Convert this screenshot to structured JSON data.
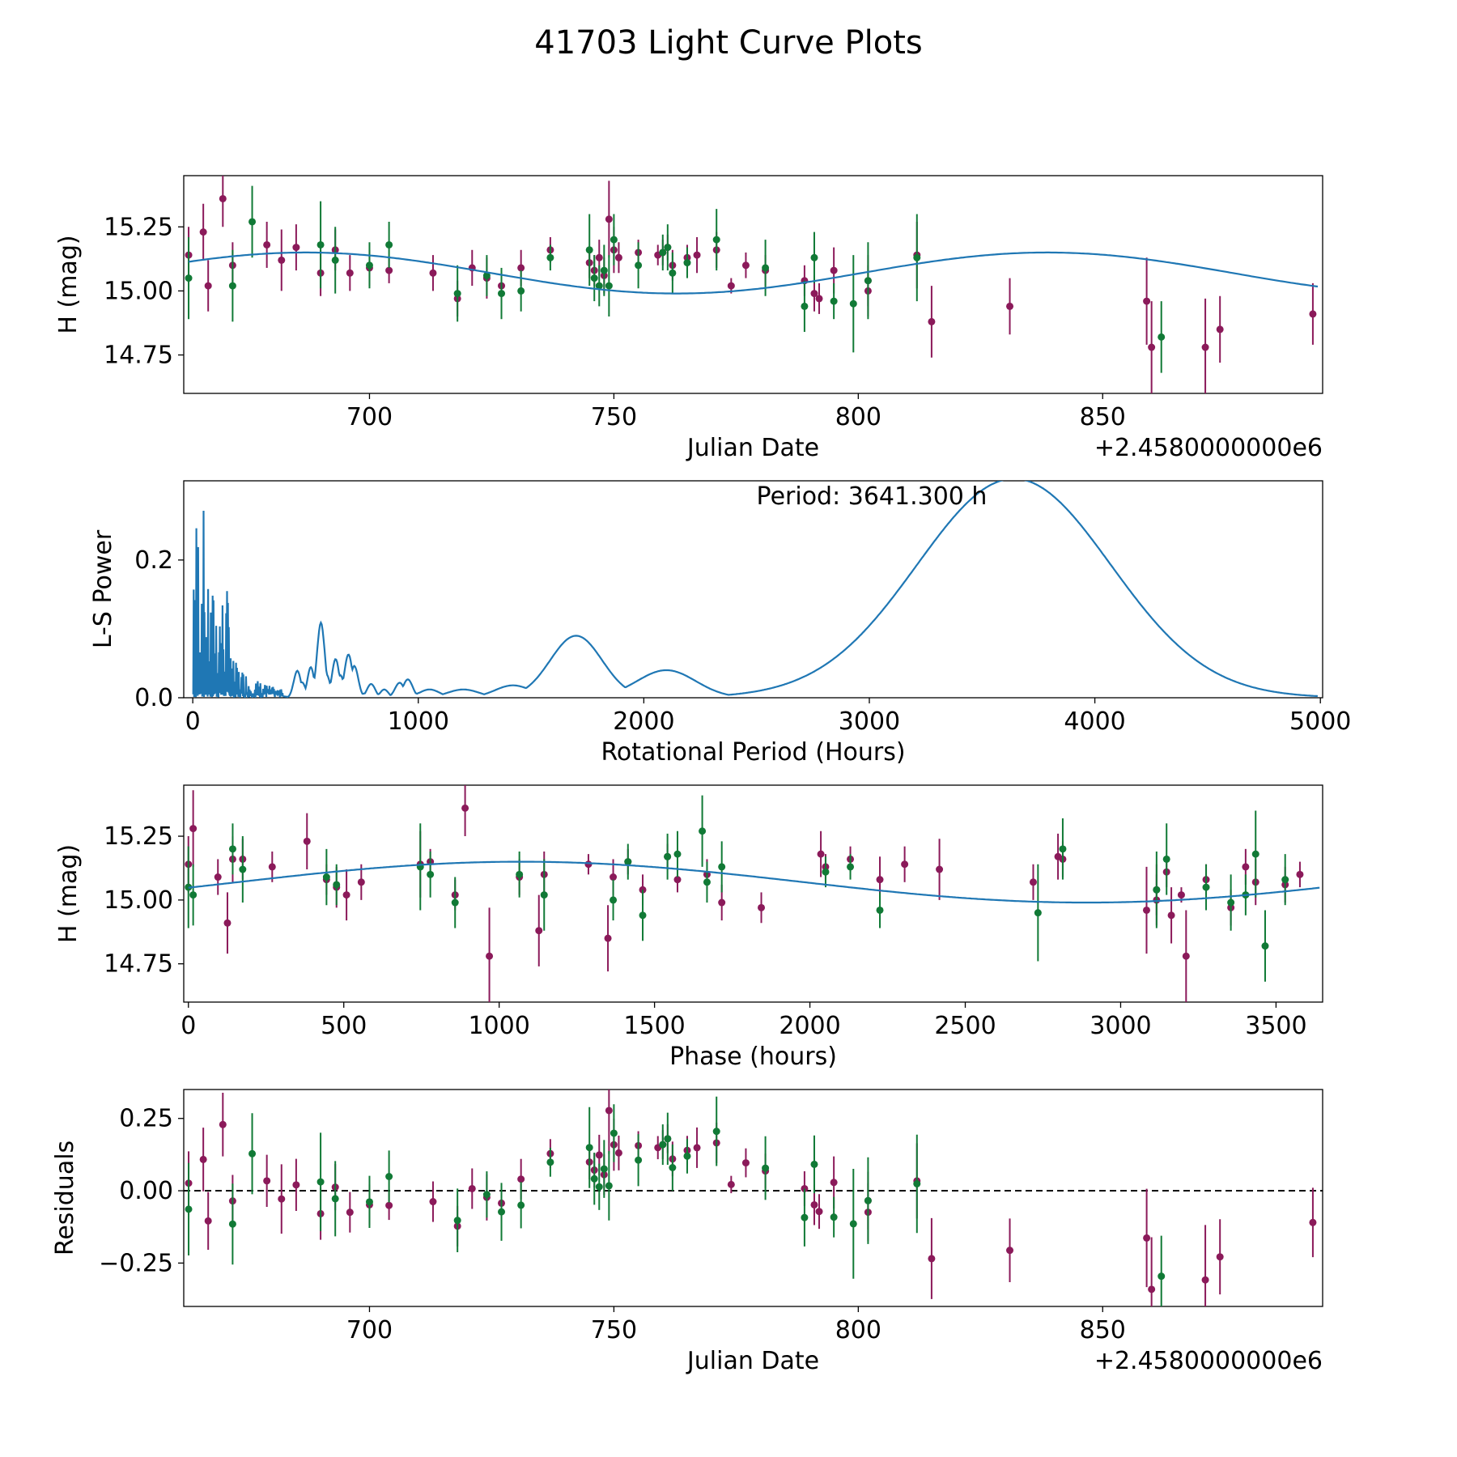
{
  "figure": {
    "title": "41703 Light Curve Plots"
  },
  "colors": {
    "series_a": "#8b1a5a",
    "series_b": "#117a36",
    "model": "#1f77b4"
  },
  "chart_data": [
    {
      "id": "lc",
      "type": "scatter",
      "xlabel": "Julian Date",
      "ylabel": "H (mag)",
      "offset_text": "+2.4580000000e6",
      "xlim": [
        662,
        895
      ],
      "ylim": [
        14.6,
        15.45
      ],
      "xticks": [
        700,
        750,
        800,
        850
      ],
      "xtick_labels": [
        "700",
        "750",
        "800",
        "850"
      ],
      "yticks": [
        14.75,
        15.0,
        15.25
      ],
      "ytick_labels": [
        "14.75",
        "15.00",
        "15.25"
      ],
      "model": {
        "mean": 15.07,
        "amplitude": 0.08,
        "period_days": 151.72,
        "epoch": 649,
        "x_range": [
          663,
          894
        ]
      },
      "series": [
        {
          "name": "red",
          "points": [
            [
              663,
              15.14,
              0.11
            ],
            [
              666,
              15.23,
              0.11
            ],
            [
              667,
              15.02,
              0.1
            ],
            [
              670,
              15.36,
              0.11
            ],
            [
              672,
              15.1,
              0.09
            ],
            [
              679,
              15.18,
              0.09
            ],
            [
              682,
              15.12,
              0.12
            ],
            [
              685,
              15.17,
              0.09
            ],
            [
              690,
              15.07,
              0.09
            ],
            [
              693,
              15.16,
              0.08
            ],
            [
              696,
              15.07,
              0.07
            ],
            [
              700,
              15.09,
              0.07
            ],
            [
              704,
              15.08,
              0.05
            ],
            [
              713,
              15.07,
              0.07
            ],
            [
              718,
              14.97,
              0.07
            ],
            [
              721,
              15.09,
              0.07
            ],
            [
              724,
              15.05,
              0.08
            ],
            [
              727,
              15.02,
              0.06
            ],
            [
              731,
              15.09,
              0.07
            ],
            [
              737,
              15.16,
              0.05
            ],
            [
              745,
              15.11,
              0.06
            ],
            [
              746,
              15.08,
              0.06
            ],
            [
              747,
              15.13,
              0.07
            ],
            [
              748,
              15.06,
              0.07
            ],
            [
              749,
              15.28,
              0.15
            ],
            [
              750,
              15.16,
              0.09
            ],
            [
              751,
              15.13,
              0.06
            ],
            [
              755,
              15.15,
              0.05
            ],
            [
              759,
              15.14,
              0.04
            ],
            [
              760,
              15.15,
              0.05
            ],
            [
              761,
              15.17,
              0.05
            ],
            [
              762,
              15.1,
              0.06
            ],
            [
              765,
              15.13,
              0.05
            ],
            [
              767,
              15.14,
              0.07
            ],
            [
              771,
              15.16,
              0.07
            ],
            [
              774,
              15.02,
              0.03
            ],
            [
              777,
              15.1,
              0.05
            ],
            [
              781,
              15.08,
              0.06
            ],
            [
              789,
              15.04,
              0.06
            ],
            [
              791,
              14.99,
              0.07
            ],
            [
              792,
              14.97,
              0.06
            ],
            [
              795,
              15.08,
              0.09
            ],
            [
              802,
              15.04,
              0.1
            ],
            [
              802,
              15.0,
              0.1
            ],
            [
              812,
              15.14,
              0.13
            ],
            [
              815,
              14.88,
              0.14
            ],
            [
              831,
              14.94,
              0.11
            ],
            [
              859,
              14.96,
              0.17
            ],
            [
              860,
              14.78,
              0.18
            ],
            [
              871,
              14.78,
              0.19
            ],
            [
              874,
              14.85,
              0.13
            ],
            [
              893,
              14.91,
              0.12
            ]
          ]
        },
        {
          "name": "green",
          "points": [
            [
              663,
              15.05,
              0.16
            ],
            [
              672,
              15.02,
              0.14
            ],
            [
              676,
              15.27,
              0.14
            ],
            [
              690,
              15.18,
              0.17
            ],
            [
              693,
              15.12,
              0.13
            ],
            [
              700,
              15.1,
              0.09
            ],
            [
              704,
              15.18,
              0.09
            ],
            [
              718,
              14.99,
              0.11
            ],
            [
              724,
              15.06,
              0.08
            ],
            [
              727,
              14.99,
              0.1
            ],
            [
              731,
              15.0,
              0.08
            ],
            [
              737,
              15.13,
              0.05
            ],
            [
              745,
              15.16,
              0.14
            ],
            [
              746,
              15.05,
              0.09
            ],
            [
              747,
              15.02,
              0.08
            ],
            [
              748,
              15.08,
              0.1
            ],
            [
              749,
              15.02,
              0.12
            ],
            [
              750,
              15.2,
              0.1
            ],
            [
              755,
              15.1,
              0.09
            ],
            [
              760,
              15.15,
              0.07
            ],
            [
              761,
              15.17,
              0.09
            ],
            [
              762,
              15.07,
              0.08
            ],
            [
              765,
              15.11,
              0.06
            ],
            [
              771,
              15.2,
              0.12
            ],
            [
              781,
              15.09,
              0.11
            ],
            [
              789,
              14.94,
              0.1
            ],
            [
              791,
              15.13,
              0.1
            ],
            [
              795,
              14.96,
              0.07
            ],
            [
              799,
              14.95,
              0.19
            ],
            [
              802,
              15.04,
              0.15
            ],
            [
              812,
              15.13,
              0.17
            ],
            [
              862,
              14.82,
              0.14
            ]
          ]
        }
      ]
    },
    {
      "id": "periodogram",
      "type": "line",
      "xlabel": "Rotational Period (Hours)",
      "ylabel": "L-S Power",
      "annotation": "Period: 3641.300 h",
      "xlim": [
        -40,
        5010
      ],
      "ylim": [
        0,
        0.315
      ],
      "xticks": [
        0,
        1000,
        2000,
        3000,
        4000,
        5000
      ],
      "xtick_labels": [
        "0",
        "1000",
        "2000",
        "3000",
        "4000",
        "5000"
      ],
      "yticks": [
        0.0,
        0.2
      ],
      "ytick_labels": [
        "0.0",
        "0.2"
      ],
      "peaks": [
        [
          470,
          0.045,
          20
        ],
        [
          530,
          0.055,
          18
        ],
        [
          570,
          0.11,
          22
        ],
        [
          640,
          0.065,
          20
        ],
        [
          700,
          0.075,
          24
        ],
        [
          790,
          0.02,
          25
        ],
        [
          850,
          0.012,
          25
        ],
        [
          940,
          0.03,
          35
        ],
        [
          1050,
          0.012,
          45
        ],
        [
          1200,
          0.012,
          70
        ],
        [
          1420,
          0.018,
          80
        ],
        [
          1700,
          0.09,
          115
        ],
        [
          2100,
          0.04,
          130
        ],
        [
          3641,
          0.318,
          430
        ]
      ],
      "baseline_power": 0.002,
      "noise_region_max": 400
    },
    {
      "id": "phase",
      "type": "scatter",
      "xlabel": "Phase (hours)",
      "ylabel": "H (mag)",
      "xlim": [
        -15,
        3650
      ],
      "ylim": [
        14.6,
        15.45
      ],
      "xticks": [
        0,
        500,
        1000,
        1500,
        2000,
        2500,
        3000,
        3500
      ],
      "xtick_labels": [
        "0",
        "500",
        "1000",
        "1500",
        "2000",
        "2500",
        "3000",
        "3500"
      ],
      "yticks": [
        14.75,
        15.0,
        15.25
      ],
      "ytick_labels": [
        "14.75",
        "15.00",
        "15.25"
      ]
    },
    {
      "id": "residuals",
      "type": "scatter",
      "xlabel": "Julian Date",
      "ylabel": "Residuals",
      "offset_text": "+2.4580000000e6",
      "xlim": [
        662,
        895
      ],
      "ylim": [
        -0.4,
        0.35
      ],
      "xticks": [
        700,
        750,
        800,
        850
      ],
      "xtick_labels": [
        "700",
        "750",
        "800",
        "850"
      ],
      "yticks": [
        -0.25,
        0.0,
        0.25
      ],
      "ytick_labels": [
        "−0.25",
        "0.00",
        "0.25"
      ]
    }
  ]
}
